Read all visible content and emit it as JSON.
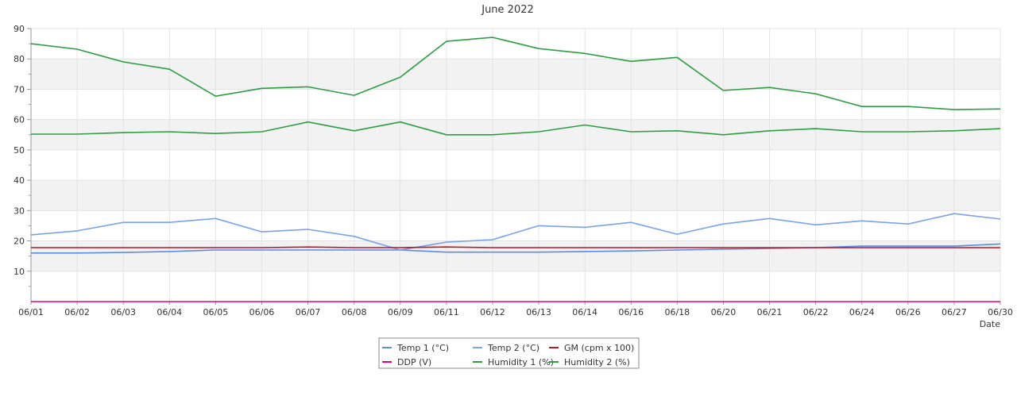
{
  "chart_data": {
    "type": "line",
    "title": "June 2022",
    "xlabel": "Date",
    "ylabel": "",
    "ylim": [
      0,
      90
    ],
    "y_ticks": [
      10,
      20,
      30,
      40,
      50,
      60,
      70,
      80,
      90
    ],
    "grid": true,
    "legend_position": "bottom-center",
    "categories": [
      "06/01",
      "06/02",
      "06/03",
      "06/04",
      "06/05",
      "06/06",
      "06/07",
      "06/08",
      "06/09",
      "06/11",
      "06/12",
      "06/13",
      "06/14",
      "06/16",
      "06/18",
      "06/20",
      "06/21",
      "06/22",
      "06/24",
      "06/26",
      "06/27",
      "06/30"
    ],
    "series": [
      {
        "name": "Temp 1 (°C)",
        "color": "#5b8ce6",
        "values": [
          16.0,
          16.0,
          16.2,
          16.5,
          17.0,
          17.0,
          17.0,
          17.0,
          17.0,
          16.3,
          16.3,
          16.3,
          16.5,
          16.7,
          17.0,
          17.3,
          17.5,
          17.8,
          18.3,
          18.3,
          18.3,
          19.0
        ]
      },
      {
        "name": "Temp 2 (°C)",
        "color": "#7aa2ea",
        "values": [
          22.0,
          23.3,
          26.1,
          26.1,
          27.4,
          23.0,
          23.8,
          21.5,
          17.0,
          19.6,
          20.4,
          25.0,
          24.5,
          26.1,
          22.2,
          25.6,
          27.4,
          25.3,
          26.6,
          25.6,
          29.0,
          27.2
        ]
      },
      {
        "name": "GM (cpm x 100)",
        "color": "#b2182b",
        "values": [
          17.8,
          17.8,
          17.8,
          17.8,
          17.8,
          17.8,
          18.0,
          17.8,
          17.8,
          18.0,
          17.8,
          17.8,
          17.8,
          17.8,
          17.8,
          17.8,
          17.8,
          17.8,
          17.8,
          17.8,
          17.8,
          17.8
        ]
      },
      {
        "name": "DDP (V)",
        "color": "#e6007e",
        "values": [
          0,
          0,
          0,
          0,
          0,
          0,
          0,
          0,
          0,
          0,
          0,
          0,
          0,
          0,
          0,
          0,
          0,
          0,
          0,
          0,
          0,
          0
        ]
      },
      {
        "name": "Humidity 1 (%)",
        "color": "#2e9e44",
        "values": [
          85.0,
          83.2,
          79.0,
          76.6,
          67.7,
          70.3,
          70.8,
          68.0,
          74.0,
          85.8,
          87.1,
          83.4,
          81.8,
          79.2,
          80.5,
          69.6,
          70.6,
          68.5,
          64.3,
          64.3,
          63.3,
          63.5
        ]
      },
      {
        "name": "Humidity 2 (%)",
        "color": "#2e9e44",
        "values": [
          55.2,
          55.2,
          55.7,
          56.0,
          55.4,
          56.0,
          59.2,
          56.3,
          59.2,
          55.0,
          55.0,
          56.0,
          58.2,
          56.0,
          56.3,
          55.0,
          56.3,
          57.0,
          56.0,
          56.0,
          56.3,
          57.0
        ]
      }
    ]
  }
}
